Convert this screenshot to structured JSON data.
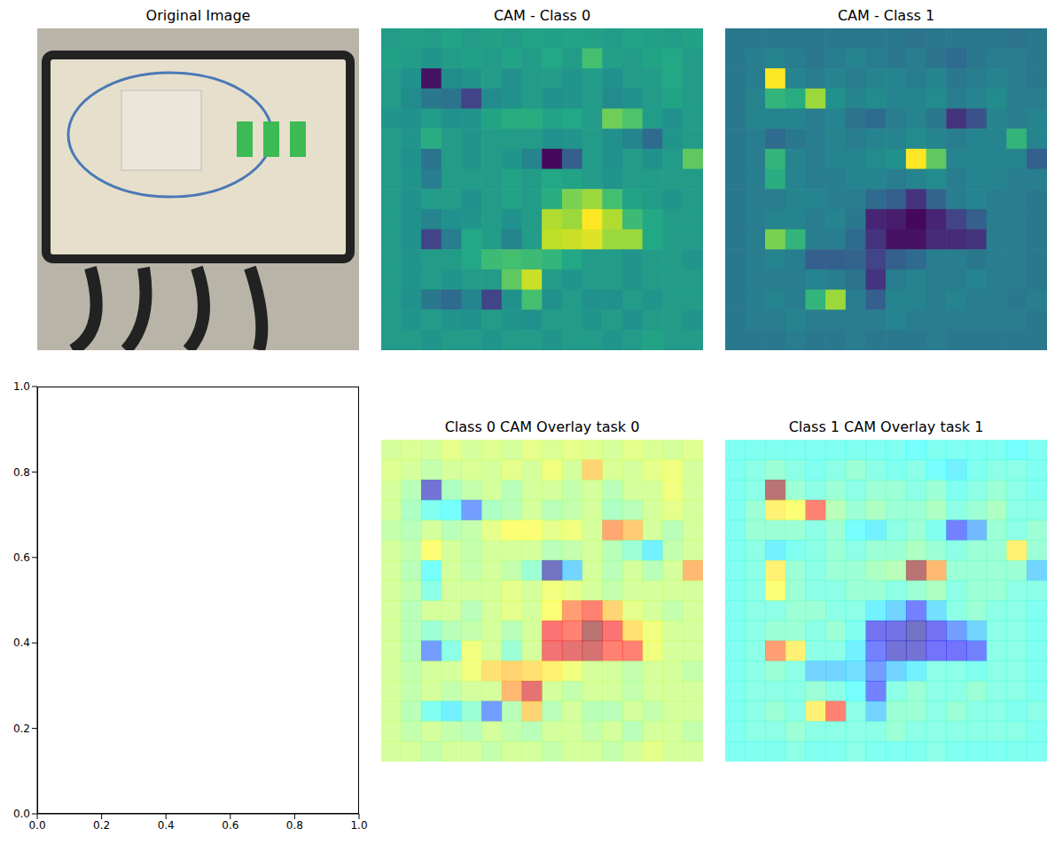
{
  "chart_data": [
    {
      "type": "image",
      "title": "Original Image"
    },
    {
      "type": "heatmap",
      "title": "CAM - Class 0",
      "color": "viridis",
      "zlim": [
        0,
        1
      ],
      "tick_labels": false,
      "cells": [
        [
          0.55,
          0.56,
          0.55,
          0.58,
          0.55,
          0.57,
          0.55,
          0.58,
          0.56,
          0.58,
          0.57,
          0.55,
          0.58,
          0.56,
          0.55,
          0.57
        ],
        [
          0.57,
          0.55,
          0.52,
          0.55,
          0.56,
          0.55,
          0.58,
          0.55,
          0.6,
          0.55,
          0.7,
          0.56,
          0.55,
          0.58,
          0.6,
          0.55
        ],
        [
          0.55,
          0.5,
          0.05,
          0.48,
          0.52,
          0.55,
          0.5,
          0.55,
          0.55,
          0.52,
          0.55,
          0.5,
          0.55,
          0.55,
          0.6,
          0.55
        ],
        [
          0.55,
          0.48,
          0.4,
          0.38,
          0.2,
          0.48,
          0.5,
          0.55,
          0.5,
          0.52,
          0.55,
          0.48,
          0.5,
          0.55,
          0.58,
          0.55
        ],
        [
          0.52,
          0.5,
          0.55,
          0.5,
          0.52,
          0.58,
          0.62,
          0.62,
          0.58,
          0.6,
          0.55,
          0.78,
          0.72,
          0.55,
          0.5,
          0.55
        ],
        [
          0.55,
          0.52,
          0.62,
          0.55,
          0.52,
          0.55,
          0.55,
          0.55,
          0.5,
          0.52,
          0.55,
          0.5,
          0.45,
          0.35,
          0.52,
          0.55
        ],
        [
          0.55,
          0.5,
          0.38,
          0.55,
          0.52,
          0.55,
          0.52,
          0.45,
          0.02,
          0.3,
          0.55,
          0.5,
          0.55,
          0.5,
          0.55,
          0.75
        ],
        [
          0.55,
          0.52,
          0.42,
          0.55,
          0.55,
          0.55,
          0.58,
          0.55,
          0.6,
          0.58,
          0.55,
          0.52,
          0.55,
          0.55,
          0.55,
          0.55
        ],
        [
          0.55,
          0.5,
          0.55,
          0.55,
          0.5,
          0.55,
          0.58,
          0.55,
          0.62,
          0.8,
          0.85,
          0.7,
          0.58,
          0.55,
          0.52,
          0.55
        ],
        [
          0.55,
          0.5,
          0.45,
          0.5,
          0.52,
          0.55,
          0.5,
          0.55,
          0.88,
          0.85,
          1.0,
          0.88,
          0.68,
          0.6,
          0.55,
          0.55
        ],
        [
          0.55,
          0.5,
          0.2,
          0.42,
          0.6,
          0.55,
          0.45,
          0.55,
          0.9,
          0.92,
          0.95,
          0.85,
          0.85,
          0.6,
          0.55,
          0.55
        ],
        [
          0.55,
          0.52,
          0.55,
          0.55,
          0.6,
          0.68,
          0.7,
          0.68,
          0.65,
          0.6,
          0.55,
          0.55,
          0.52,
          0.55,
          0.55,
          0.52
        ],
        [
          0.55,
          0.52,
          0.55,
          0.52,
          0.55,
          0.55,
          0.75,
          0.92,
          0.55,
          0.52,
          0.55,
          0.55,
          0.52,
          0.55,
          0.55,
          0.55
        ],
        [
          0.55,
          0.5,
          0.4,
          0.35,
          0.45,
          0.2,
          0.5,
          0.7,
          0.5,
          0.55,
          0.5,
          0.5,
          0.55,
          0.52,
          0.55,
          0.55
        ],
        [
          0.55,
          0.52,
          0.55,
          0.52,
          0.5,
          0.55,
          0.52,
          0.5,
          0.55,
          0.55,
          0.52,
          0.55,
          0.5,
          0.55,
          0.55,
          0.52
        ],
        [
          0.55,
          0.55,
          0.52,
          0.55,
          0.55,
          0.52,
          0.55,
          0.55,
          0.52,
          0.55,
          0.55,
          0.52,
          0.55,
          0.58,
          0.55,
          0.55
        ]
      ]
    },
    {
      "type": "heatmap",
      "title": "CAM - Class 1",
      "color": "viridis",
      "zlim": [
        0,
        1
      ],
      "tick_labels": false,
      "cells": [
        [
          0.4,
          0.4,
          0.4,
          0.4,
          0.4,
          0.4,
          0.4,
          0.4,
          0.4,
          0.38,
          0.4,
          0.4,
          0.4,
          0.4,
          0.38,
          0.4
        ],
        [
          0.4,
          0.42,
          0.45,
          0.42,
          0.4,
          0.42,
          0.45,
          0.42,
          0.4,
          0.42,
          0.38,
          0.35,
          0.4,
          0.42,
          0.42,
          0.4
        ],
        [
          0.4,
          0.42,
          1.0,
          0.45,
          0.42,
          0.45,
          0.42,
          0.45,
          0.45,
          0.42,
          0.45,
          0.4,
          0.42,
          0.45,
          0.42,
          0.4
        ],
        [
          0.4,
          0.45,
          0.65,
          0.62,
          0.85,
          0.5,
          0.45,
          0.48,
          0.45,
          0.45,
          0.48,
          0.42,
          0.45,
          0.48,
          0.42,
          0.42
        ],
        [
          0.4,
          0.45,
          0.45,
          0.45,
          0.42,
          0.45,
          0.38,
          0.35,
          0.42,
          0.45,
          0.4,
          0.15,
          0.25,
          0.45,
          0.42,
          0.45
        ],
        [
          0.4,
          0.42,
          0.35,
          0.4,
          0.42,
          0.45,
          0.42,
          0.45,
          0.45,
          0.48,
          0.45,
          0.42,
          0.45,
          0.45,
          0.65,
          0.45
        ],
        [
          0.4,
          0.42,
          0.65,
          0.45,
          0.42,
          0.45,
          0.45,
          0.48,
          0.5,
          1.0,
          0.75,
          0.45,
          0.45,
          0.45,
          0.45,
          0.3
        ],
        [
          0.4,
          0.42,
          0.62,
          0.45,
          0.42,
          0.42,
          0.45,
          0.45,
          0.42,
          0.45,
          0.48,
          0.42,
          0.45,
          0.45,
          0.42,
          0.42
        ],
        [
          0.4,
          0.42,
          0.42,
          0.45,
          0.45,
          0.42,
          0.42,
          0.35,
          0.3,
          0.15,
          0.32,
          0.42,
          0.45,
          0.42,
          0.42,
          0.4
        ],
        [
          0.4,
          0.42,
          0.45,
          0.45,
          0.42,
          0.45,
          0.4,
          0.1,
          0.08,
          0.02,
          0.1,
          0.2,
          0.3,
          0.42,
          0.42,
          0.4
        ],
        [
          0.4,
          0.42,
          0.8,
          0.65,
          0.42,
          0.42,
          0.35,
          0.15,
          0.05,
          0.05,
          0.12,
          0.12,
          0.15,
          0.42,
          0.42,
          0.4
        ],
        [
          0.4,
          0.42,
          0.45,
          0.42,
          0.3,
          0.3,
          0.32,
          0.2,
          0.3,
          0.35,
          0.42,
          0.42,
          0.4,
          0.42,
          0.42,
          0.4
        ],
        [
          0.4,
          0.42,
          0.42,
          0.42,
          0.45,
          0.42,
          0.38,
          0.15,
          0.42,
          0.45,
          0.42,
          0.42,
          0.45,
          0.42,
          0.42,
          0.4
        ],
        [
          0.4,
          0.42,
          0.45,
          0.42,
          0.65,
          0.85,
          0.42,
          0.3,
          0.45,
          0.45,
          0.42,
          0.45,
          0.42,
          0.42,
          0.4,
          0.42
        ],
        [
          0.4,
          0.42,
          0.42,
          0.45,
          0.42,
          0.42,
          0.42,
          0.42,
          0.45,
          0.42,
          0.42,
          0.42,
          0.42,
          0.42,
          0.42,
          0.4
        ],
        [
          0.4,
          0.4,
          0.4,
          0.42,
          0.4,
          0.4,
          0.42,
          0.4,
          0.4,
          0.4,
          0.42,
          0.4,
          0.4,
          0.4,
          0.4,
          0.4
        ]
      ]
    },
    {
      "type": "scatter",
      "x": [],
      "values": [],
      "xlim": [
        0,
        1
      ],
      "ylim": [
        0,
        1
      ],
      "xticks": [
        {
          "value": 0,
          "label": "0.0"
        },
        {
          "value": 0.2,
          "label": "0.2"
        },
        {
          "value": 0.4,
          "label": "0.4"
        },
        {
          "value": 0.6,
          "label": "0.6"
        },
        {
          "value": 0.8,
          "label": "0.8"
        },
        {
          "value": 1,
          "label": "1.0"
        }
      ],
      "yticks": [
        {
          "value": 0,
          "label": "0.0"
        },
        {
          "value": 0.2,
          "label": "0.2"
        },
        {
          "value": 0.4,
          "label": "0.4"
        },
        {
          "value": 0.6,
          "label": "0.6"
        },
        {
          "value": 0.8,
          "label": "0.8"
        },
        {
          "value": 1,
          "label": "1.0"
        }
      ]
    },
    {
      "type": "heatmap",
      "title": "Class 0 CAM Overlay task 0",
      "color": "jet",
      "zlim": [
        0,
        1
      ],
      "tick_labels": false,
      "cells": [
        [
          0.55,
          0.56,
          0.55,
          0.58,
          0.55,
          0.57,
          0.55,
          0.58,
          0.56,
          0.58,
          0.57,
          0.55,
          0.58,
          0.56,
          0.55,
          0.57
        ],
        [
          0.57,
          0.55,
          0.52,
          0.55,
          0.56,
          0.55,
          0.58,
          0.55,
          0.6,
          0.55,
          0.7,
          0.56,
          0.55,
          0.58,
          0.6,
          0.55
        ],
        [
          0.55,
          0.5,
          0.05,
          0.48,
          0.52,
          0.55,
          0.5,
          0.55,
          0.55,
          0.52,
          0.55,
          0.5,
          0.55,
          0.55,
          0.6,
          0.55
        ],
        [
          0.55,
          0.48,
          0.4,
          0.38,
          0.2,
          0.48,
          0.5,
          0.55,
          0.5,
          0.52,
          0.55,
          0.48,
          0.5,
          0.55,
          0.58,
          0.55
        ],
        [
          0.52,
          0.5,
          0.55,
          0.5,
          0.52,
          0.58,
          0.62,
          0.62,
          0.58,
          0.6,
          0.55,
          0.78,
          0.72,
          0.55,
          0.5,
          0.55
        ],
        [
          0.55,
          0.52,
          0.62,
          0.55,
          0.52,
          0.55,
          0.55,
          0.55,
          0.5,
          0.52,
          0.55,
          0.5,
          0.45,
          0.35,
          0.52,
          0.55
        ],
        [
          0.55,
          0.5,
          0.38,
          0.55,
          0.52,
          0.55,
          0.52,
          0.45,
          0.02,
          0.3,
          0.55,
          0.5,
          0.55,
          0.5,
          0.55,
          0.75
        ],
        [
          0.55,
          0.52,
          0.42,
          0.55,
          0.55,
          0.55,
          0.58,
          0.55,
          0.6,
          0.58,
          0.55,
          0.52,
          0.55,
          0.55,
          0.55,
          0.55
        ],
        [
          0.55,
          0.5,
          0.55,
          0.55,
          0.5,
          0.55,
          0.58,
          0.55,
          0.62,
          0.8,
          0.85,
          0.7,
          0.58,
          0.55,
          0.52,
          0.55
        ],
        [
          0.55,
          0.5,
          0.45,
          0.5,
          0.52,
          0.55,
          0.5,
          0.55,
          0.88,
          0.85,
          1.0,
          0.88,
          0.68,
          0.6,
          0.55,
          0.55
        ],
        [
          0.55,
          0.5,
          0.2,
          0.42,
          0.6,
          0.55,
          0.45,
          0.55,
          0.9,
          0.92,
          0.95,
          0.85,
          0.85,
          0.6,
          0.55,
          0.55
        ],
        [
          0.55,
          0.52,
          0.55,
          0.55,
          0.6,
          0.68,
          0.7,
          0.68,
          0.65,
          0.6,
          0.55,
          0.55,
          0.52,
          0.55,
          0.55,
          0.52
        ],
        [
          0.55,
          0.52,
          0.55,
          0.52,
          0.55,
          0.55,
          0.75,
          0.92,
          0.55,
          0.52,
          0.55,
          0.55,
          0.52,
          0.55,
          0.55,
          0.55
        ],
        [
          0.55,
          0.5,
          0.4,
          0.35,
          0.45,
          0.2,
          0.5,
          0.7,
          0.5,
          0.55,
          0.5,
          0.5,
          0.55,
          0.52,
          0.55,
          0.55
        ],
        [
          0.55,
          0.52,
          0.55,
          0.52,
          0.5,
          0.55,
          0.52,
          0.5,
          0.55,
          0.55,
          0.52,
          0.55,
          0.5,
          0.55,
          0.55,
          0.52
        ],
        [
          0.55,
          0.55,
          0.52,
          0.55,
          0.55,
          0.52,
          0.55,
          0.55,
          0.52,
          0.55,
          0.55,
          0.52,
          0.55,
          0.58,
          0.55,
          0.55
        ]
      ]
    },
    {
      "type": "heatmap",
      "title": "Class 1 CAM Overlay task 1",
      "color": "jet",
      "zlim": [
        0,
        1
      ],
      "tick_labels": false,
      "cells": [
        [
          0.4,
          0.4,
          0.4,
          0.4,
          0.4,
          0.4,
          0.4,
          0.4,
          0.4,
          0.38,
          0.4,
          0.4,
          0.4,
          0.4,
          0.38,
          0.4
        ],
        [
          0.4,
          0.42,
          0.45,
          0.42,
          0.4,
          0.42,
          0.45,
          0.42,
          0.4,
          0.42,
          0.38,
          0.35,
          0.4,
          0.42,
          0.42,
          0.4
        ],
        [
          0.4,
          0.42,
          1.0,
          0.45,
          0.42,
          0.45,
          0.42,
          0.45,
          0.45,
          0.42,
          0.45,
          0.4,
          0.42,
          0.45,
          0.42,
          0.4
        ],
        [
          0.4,
          0.45,
          0.65,
          0.62,
          0.85,
          0.5,
          0.45,
          0.48,
          0.45,
          0.45,
          0.48,
          0.42,
          0.45,
          0.48,
          0.42,
          0.42
        ],
        [
          0.4,
          0.45,
          0.45,
          0.45,
          0.42,
          0.45,
          0.38,
          0.35,
          0.42,
          0.45,
          0.4,
          0.15,
          0.25,
          0.45,
          0.42,
          0.45
        ],
        [
          0.4,
          0.42,
          0.35,
          0.4,
          0.42,
          0.45,
          0.42,
          0.45,
          0.45,
          0.48,
          0.45,
          0.42,
          0.45,
          0.45,
          0.65,
          0.45
        ],
        [
          0.4,
          0.42,
          0.65,
          0.45,
          0.42,
          0.45,
          0.45,
          0.48,
          0.5,
          1.0,
          0.75,
          0.45,
          0.45,
          0.45,
          0.45,
          0.3
        ],
        [
          0.4,
          0.42,
          0.62,
          0.45,
          0.42,
          0.42,
          0.45,
          0.45,
          0.42,
          0.45,
          0.48,
          0.42,
          0.45,
          0.45,
          0.42,
          0.42
        ],
        [
          0.4,
          0.42,
          0.42,
          0.45,
          0.45,
          0.42,
          0.42,
          0.35,
          0.3,
          0.15,
          0.32,
          0.42,
          0.45,
          0.42,
          0.42,
          0.4
        ],
        [
          0.4,
          0.42,
          0.45,
          0.45,
          0.42,
          0.45,
          0.4,
          0.1,
          0.08,
          0.02,
          0.1,
          0.2,
          0.3,
          0.42,
          0.42,
          0.4
        ],
        [
          0.4,
          0.42,
          0.8,
          0.65,
          0.42,
          0.42,
          0.35,
          0.15,
          0.05,
          0.05,
          0.12,
          0.12,
          0.15,
          0.42,
          0.42,
          0.4
        ],
        [
          0.4,
          0.42,
          0.45,
          0.42,
          0.3,
          0.3,
          0.32,
          0.2,
          0.3,
          0.35,
          0.42,
          0.42,
          0.4,
          0.42,
          0.42,
          0.4
        ],
        [
          0.4,
          0.42,
          0.42,
          0.42,
          0.45,
          0.42,
          0.38,
          0.15,
          0.42,
          0.45,
          0.42,
          0.42,
          0.45,
          0.42,
          0.42,
          0.4
        ],
        [
          0.4,
          0.42,
          0.45,
          0.42,
          0.65,
          0.85,
          0.42,
          0.3,
          0.45,
          0.45,
          0.42,
          0.45,
          0.42,
          0.42,
          0.4,
          0.42
        ],
        [
          0.4,
          0.42,
          0.42,
          0.45,
          0.42,
          0.42,
          0.42,
          0.42,
          0.45,
          0.42,
          0.42,
          0.42,
          0.42,
          0.42,
          0.42,
          0.4
        ],
        [
          0.4,
          0.4,
          0.4,
          0.42,
          0.4,
          0.4,
          0.42,
          0.4,
          0.4,
          0.4,
          0.42,
          0.4,
          0.4,
          0.4,
          0.4,
          0.4
        ]
      ]
    }
  ]
}
